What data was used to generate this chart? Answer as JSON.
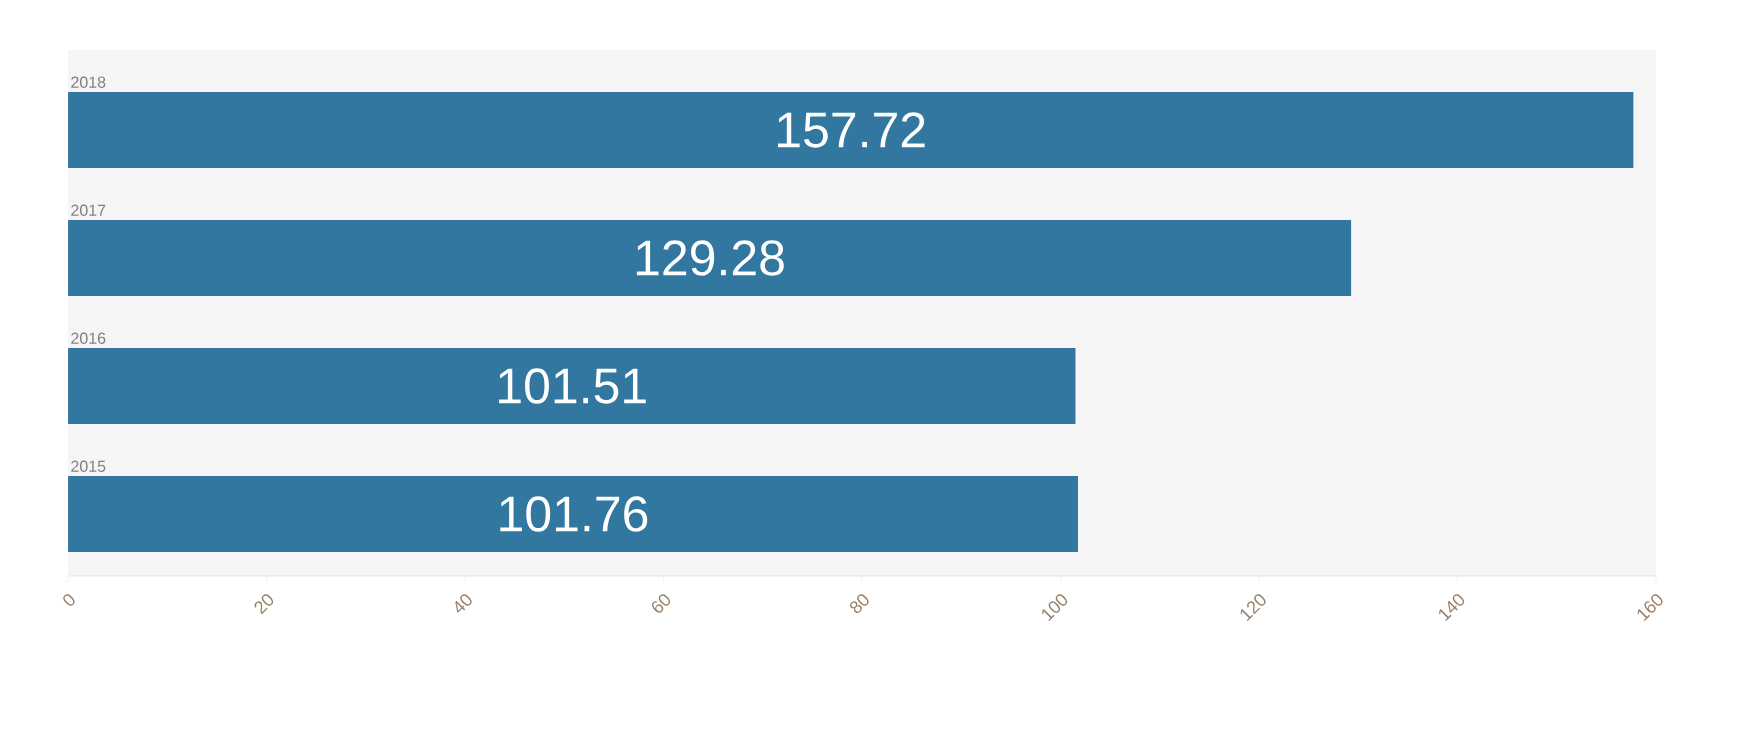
{
  "chart_data": {
    "type": "bar",
    "orientation": "horizontal",
    "categories": [
      "2018",
      "2017",
      "2016",
      "2015"
    ],
    "values": [
      157.72,
      129.28,
      101.51,
      101.76
    ],
    "color": "#3277a0",
    "xlim": [
      0,
      160
    ],
    "xticks": [
      0,
      20,
      40,
      60,
      80,
      100,
      120,
      140,
      160
    ],
    "data_labels": true
  }
}
